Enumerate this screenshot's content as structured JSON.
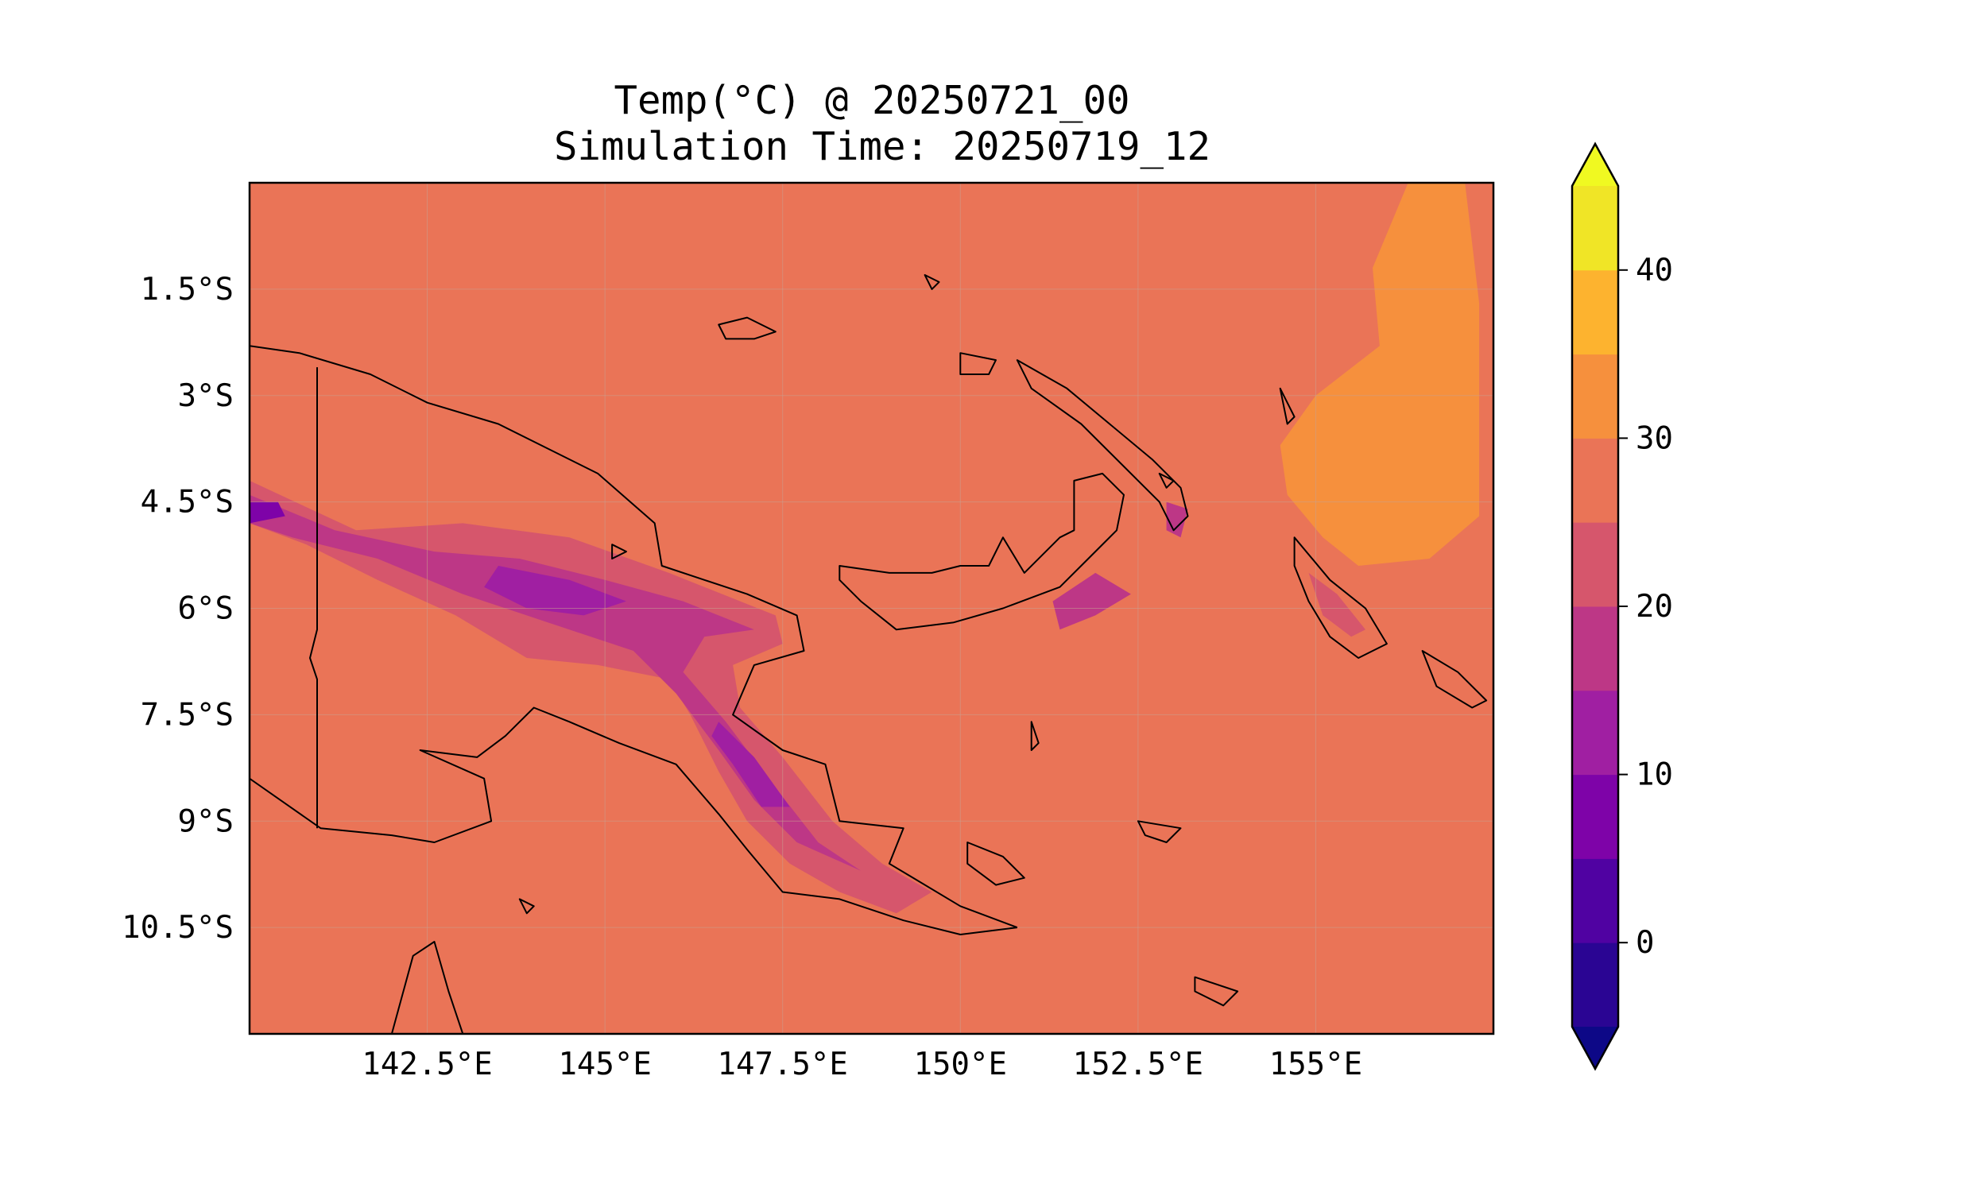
{
  "title": {
    "line1": "Temp(°C) @ 20250721_00",
    "line2": "Simulation Time: 20250719_12"
  },
  "axes": {
    "lon_range": [
      140.0,
      157.5
    ],
    "lat_range": [
      -12.0,
      0.0
    ],
    "lon_ticks": [
      {
        "value": 142.5,
        "label": "142.5°E"
      },
      {
        "value": 145.0,
        "label": "145°E"
      },
      {
        "value": 147.5,
        "label": "147.5°E"
      },
      {
        "value": 150.0,
        "label": "150°E"
      },
      {
        "value": 152.5,
        "label": "152.5°E"
      },
      {
        "value": 155.0,
        "label": "155°E"
      }
    ],
    "lat_ticks": [
      {
        "value": -1.5,
        "label": "1.5°S"
      },
      {
        "value": -3.0,
        "label": "3°S"
      },
      {
        "value": -4.5,
        "label": "4.5°S"
      },
      {
        "value": -6.0,
        "label": "6°S"
      },
      {
        "value": -7.5,
        "label": "7.5°S"
      },
      {
        "value": -9.0,
        "label": "9°S"
      },
      {
        "value": -10.5,
        "label": "10.5°S"
      }
    ],
    "grid": true
  },
  "colorbar": {
    "min": -5,
    "max": 45,
    "extend": "both",
    "levels": [
      {
        "from": -5,
        "to": 0,
        "color": "#2a0593"
      },
      {
        "from": 0,
        "to": 5,
        "color": "#5002a2"
      },
      {
        "from": 5,
        "to": 10,
        "color": "#7e03a8"
      },
      {
        "from": 10,
        "to": 15,
        "color": "#a01fa2"
      },
      {
        "from": 15,
        "to": 20,
        "color": "#bd3786"
      },
      {
        "from": 20,
        "to": 25,
        "color": "#d6566c"
      },
      {
        "from": 25,
        "to": 30,
        "color": "#ea7457"
      },
      {
        "from": 30,
        "to": 35,
        "color": "#f6903d"
      },
      {
        "from": 35,
        "to": 40,
        "color": "#fdb32f"
      },
      {
        "from": 40,
        "to": 45,
        "color": "#f0e526"
      }
    ],
    "under_color": "#0d0887",
    "over_color": "#f0f921",
    "ticks": [
      {
        "value": 0,
        "label": "0"
      },
      {
        "value": 10,
        "label": "10"
      },
      {
        "value": 20,
        "label": "20"
      },
      {
        "value": 30,
        "label": "30"
      },
      {
        "value": 40,
        "label": "40"
      }
    ]
  },
  "field": {
    "background_level_color": "#ea7457",
    "regions": [
      {
        "name": "east-warm-zone",
        "color": "#f6903d",
        "points": [
          [
            156.3,
            0
          ],
          [
            157.1,
            0
          ],
          [
            157.3,
            -1.7
          ],
          [
            157.3,
            -4.7
          ],
          [
            156.6,
            -5.3
          ],
          [
            155.6,
            -5.4
          ],
          [
            155.1,
            -5.0
          ],
          [
            154.6,
            -4.4
          ],
          [
            154.5,
            -3.7
          ],
          [
            155.0,
            -3.0
          ],
          [
            155.9,
            -2.3
          ],
          [
            155.8,
            -1.2
          ]
        ]
      },
      {
        "name": "highlands-20-25",
        "color": "#d6566c",
        "points": [
          [
            140,
            -4.2
          ],
          [
            141.5,
            -4.9
          ],
          [
            143.0,
            -4.8
          ],
          [
            144.5,
            -5.0
          ],
          [
            145.9,
            -5.5
          ],
          [
            147.4,
            -6.1
          ],
          [
            147.5,
            -6.5
          ],
          [
            146.8,
            -6.8
          ],
          [
            146.9,
            -7.4
          ],
          [
            147.5,
            -8.1
          ],
          [
            148.2,
            -9.0
          ],
          [
            148.9,
            -9.6
          ],
          [
            149.6,
            -10.0
          ],
          [
            149.1,
            -10.3
          ],
          [
            148.3,
            -10.0
          ],
          [
            147.6,
            -9.6
          ],
          [
            147.0,
            -9.0
          ],
          [
            146.6,
            -8.3
          ],
          [
            146.2,
            -7.5
          ],
          [
            145.9,
            -7.0
          ],
          [
            144.9,
            -6.8
          ],
          [
            143.9,
            -6.7
          ],
          [
            142.9,
            -6.1
          ],
          [
            141.8,
            -5.6
          ],
          [
            140.8,
            -5.1
          ],
          [
            140,
            -4.8
          ]
        ]
      },
      {
        "name": "highlands-15-20",
        "color": "#bd3786",
        "points": [
          [
            140,
            -4.4
          ],
          [
            141.2,
            -4.9
          ],
          [
            142.6,
            -5.2
          ],
          [
            143.8,
            -5.3
          ],
          [
            145.0,
            -5.6
          ],
          [
            146.1,
            -5.9
          ],
          [
            147.1,
            -6.3
          ],
          [
            146.4,
            -6.4
          ],
          [
            146.1,
            -6.9
          ],
          [
            146.7,
            -7.6
          ],
          [
            147.3,
            -8.4
          ],
          [
            148.0,
            -9.3
          ],
          [
            148.6,
            -9.7
          ],
          [
            147.7,
            -9.3
          ],
          [
            147.1,
            -8.7
          ],
          [
            146.6,
            -8.0
          ],
          [
            146.0,
            -7.2
          ],
          [
            145.4,
            -6.6
          ],
          [
            144.2,
            -6.2
          ],
          [
            143.0,
            -5.8
          ],
          [
            141.8,
            -5.3
          ],
          [
            140.6,
            -5.0
          ],
          [
            140,
            -4.8
          ]
        ]
      },
      {
        "name": "highlands-10-15",
        "color": "#a01fa2",
        "points": [
          [
            143.5,
            -5.4
          ],
          [
            144.5,
            -5.6
          ],
          [
            145.3,
            -5.9
          ],
          [
            144.7,
            -6.1
          ],
          [
            143.9,
            -6.0
          ],
          [
            143.3,
            -5.7
          ]
        ]
      },
      {
        "name": "highlands-10-15-b",
        "color": "#a01fa2",
        "points": [
          [
            146.6,
            -7.6
          ],
          [
            147.1,
            -8.1
          ],
          [
            147.6,
            -8.8
          ],
          [
            147.2,
            -8.8
          ],
          [
            146.8,
            -8.2
          ],
          [
            146.5,
            -7.8
          ]
        ]
      },
      {
        "name": "highlands-5-10",
        "color": "#7e03a8",
        "points": [
          [
            140,
            -4.5
          ],
          [
            140.4,
            -4.5
          ],
          [
            140.5,
            -4.7
          ],
          [
            140,
            -4.8
          ]
        ]
      },
      {
        "name": "new-britain-15-20",
        "color": "#bd3786",
        "points": [
          [
            151.3,
            -5.9
          ],
          [
            151.9,
            -5.5
          ],
          [
            152.4,
            -5.8
          ],
          [
            151.9,
            -6.1
          ],
          [
            151.4,
            -6.3
          ]
        ]
      },
      {
        "name": "new-ireland-15-20",
        "color": "#bd3786",
        "points": [
          [
            152.9,
            -4.5
          ],
          [
            153.2,
            -4.6
          ],
          [
            153.1,
            -5.0
          ],
          [
            152.9,
            -4.9
          ]
        ]
      },
      {
        "name": "bougainville-20-25",
        "color": "#d6566c",
        "points": [
          [
            154.9,
            -5.5
          ],
          [
            155.3,
            -5.8
          ],
          [
            155.7,
            -6.3
          ],
          [
            155.5,
            -6.4
          ],
          [
            155.1,
            -6.1
          ]
        ]
      }
    ]
  },
  "coastlines": [
    {
      "name": "new-guinea-north-coast",
      "closed": false,
      "points": [
        [
          140,
          -2.3
        ],
        [
          140.7,
          -2.4
        ],
        [
          141.7,
          -2.7
        ],
        [
          142.5,
          -3.1
        ],
        [
          143.5,
          -3.4
        ],
        [
          144.3,
          -3.8
        ],
        [
          144.9,
          -4.1
        ],
        [
          145.7,
          -4.8
        ],
        [
          145.8,
          -5.4
        ],
        [
          146.4,
          -5.6
        ],
        [
          147.0,
          -5.8
        ],
        [
          147.7,
          -6.1
        ],
        [
          147.8,
          -6.6
        ],
        [
          147.1,
          -6.8
        ],
        [
          146.8,
          -7.5
        ],
        [
          147.5,
          -8.0
        ],
        [
          148.1,
          -8.2
        ],
        [
          148.3,
          -9.0
        ],
        [
          149.2,
          -9.1
        ],
        [
          149.0,
          -9.6
        ],
        [
          150.0,
          -10.2
        ],
        [
          150.8,
          -10.5
        ]
      ]
    },
    {
      "name": "new-guinea-south-coast",
      "closed": false,
      "points": [
        [
          150.8,
          -10.5
        ],
        [
          150.0,
          -10.6
        ],
        [
          149.2,
          -10.4
        ],
        [
          148.3,
          -10.1
        ],
        [
          147.5,
          -10.0
        ],
        [
          147.0,
          -9.4
        ],
        [
          146.6,
          -8.9
        ],
        [
          146.0,
          -8.2
        ],
        [
          145.2,
          -7.9
        ],
        [
          144.5,
          -7.6
        ],
        [
          144.0,
          -7.4
        ],
        [
          143.6,
          -7.8
        ],
        [
          143.2,
          -8.1
        ],
        [
          142.4,
          -8.0
        ],
        [
          143.3,
          -8.4
        ],
        [
          143.4,
          -9.0
        ],
        [
          142.6,
          -9.3
        ],
        [
          142.0,
          -9.2
        ],
        [
          141.0,
          -9.1
        ],
        [
          140,
          -8.4
        ]
      ]
    },
    {
      "name": "png-indonesia-border",
      "closed": false,
      "points": [
        [
          140.95,
          -2.6
        ],
        [
          140.95,
          -6.3
        ],
        [
          140.85,
          -6.7
        ],
        [
          140.95,
          -7.0
        ],
        [
          140.95,
          -9.1
        ]
      ]
    },
    {
      "name": "new-britain",
      "closed": true,
      "points": [
        [
          148.3,
          -5.4
        ],
        [
          149.0,
          -5.5
        ],
        [
          149.6,
          -5.5
        ],
        [
          150.0,
          -5.4
        ],
        [
          150.4,
          -5.4
        ],
        [
          150.6,
          -5.0
        ],
        [
          150.9,
          -5.5
        ],
        [
          151.4,
          -5.0
        ],
        [
          151.6,
          -4.9
        ],
        [
          151.6,
          -4.2
        ],
        [
          152.0,
          -4.1
        ],
        [
          152.3,
          -4.4
        ],
        [
          152.2,
          -4.9
        ],
        [
          151.8,
          -5.3
        ],
        [
          151.4,
          -5.7
        ],
        [
          150.6,
          -6.0
        ],
        [
          149.9,
          -6.2
        ],
        [
          149.1,
          -6.3
        ],
        [
          148.6,
          -5.9
        ],
        [
          148.3,
          -5.6
        ]
      ]
    },
    {
      "name": "new-ireland",
      "closed": true,
      "points": [
        [
          150.8,
          -2.5
        ],
        [
          151.5,
          -2.9
        ],
        [
          152.1,
          -3.4
        ],
        [
          152.7,
          -3.9
        ],
        [
          153.1,
          -4.3
        ],
        [
          153.2,
          -4.7
        ],
        [
          153.0,
          -4.9
        ],
        [
          152.8,
          -4.5
        ],
        [
          152.3,
          -4.0
        ],
        [
          151.7,
          -3.4
        ],
        [
          151.0,
          -2.9
        ]
      ]
    },
    {
      "name": "manus",
      "closed": true,
      "points": [
        [
          146.6,
          -2.0
        ],
        [
          147.0,
          -1.9
        ],
        [
          147.4,
          -2.1
        ],
        [
          147.1,
          -2.2
        ],
        [
          146.7,
          -2.2
        ]
      ]
    },
    {
      "name": "new-hanover",
      "closed": true,
      "points": [
        [
          150.0,
          -2.4
        ],
        [
          150.5,
          -2.5
        ],
        [
          150.4,
          -2.7
        ],
        [
          150.0,
          -2.7
        ]
      ]
    },
    {
      "name": "bougainville",
      "closed": true,
      "points": [
        [
          154.7,
          -5.0
        ],
        [
          155.2,
          -5.6
        ],
        [
          155.7,
          -6.0
        ],
        [
          156.0,
          -6.5
        ],
        [
          155.6,
          -6.7
        ],
        [
          155.2,
          -6.4
        ],
        [
          154.9,
          -5.9
        ],
        [
          154.7,
          -5.4
        ]
      ]
    },
    {
      "name": "choiseul",
      "closed": true,
      "points": [
        [
          156.5,
          -6.6
        ],
        [
          157.0,
          -6.9
        ],
        [
          157.4,
          -7.3
        ],
        [
          157.2,
          -7.4
        ],
        [
          156.7,
          -7.1
        ]
      ]
    },
    {
      "name": "goodenough-fergusson",
      "closed": true,
      "points": [
        [
          150.1,
          -9.3
        ],
        [
          150.6,
          -9.5
        ],
        [
          150.9,
          -9.8
        ],
        [
          150.5,
          -9.9
        ],
        [
          150.1,
          -9.6
        ]
      ]
    },
    {
      "name": "woodlark",
      "closed": true,
      "points": [
        [
          152.5,
          -9.0
        ],
        [
          153.1,
          -9.1
        ],
        [
          152.9,
          -9.3
        ],
        [
          152.6,
          -9.2
        ]
      ]
    },
    {
      "name": "rossel-islands",
      "closed": true,
      "points": [
        [
          153.3,
          -11.2
        ],
        [
          153.9,
          -11.4
        ],
        [
          153.7,
          -11.6
        ],
        [
          153.3,
          -11.4
        ]
      ]
    },
    {
      "name": "cape-york",
      "closed": false,
      "points": [
        [
          142.0,
          -12.0
        ],
        [
          142.3,
          -10.9
        ],
        [
          142.6,
          -10.7
        ],
        [
          142.8,
          -11.4
        ],
        [
          143.0,
          -12.0
        ]
      ]
    },
    {
      "name": "islet-1",
      "closed": true,
      "points": [
        [
          149.5,
          -1.3
        ],
        [
          149.7,
          -1.4
        ],
        [
          149.6,
          -1.5
        ]
      ]
    },
    {
      "name": "islet-2",
      "closed": true,
      "points": [
        [
          152.8,
          -4.1
        ],
        [
          153.0,
          -4.2
        ],
        [
          152.9,
          -4.3
        ]
      ]
    },
    {
      "name": "islet-3",
      "closed": true,
      "points": [
        [
          154.5,
          -2.9
        ],
        [
          154.7,
          -3.3
        ],
        [
          154.6,
          -3.4
        ]
      ]
    },
    {
      "name": "islet-4",
      "closed": true,
      "points": [
        [
          151.0,
          -7.6
        ],
        [
          151.1,
          -7.9
        ],
        [
          151.0,
          -8.0
        ]
      ]
    },
    {
      "name": "islet-5",
      "closed": true,
      "points": [
        [
          145.1,
          -5.1
        ],
        [
          145.3,
          -5.2
        ],
        [
          145.1,
          -5.3
        ]
      ]
    },
    {
      "name": "islet-6",
      "closed": true,
      "points": [
        [
          143.8,
          -10.1
        ],
        [
          144.0,
          -10.2
        ],
        [
          143.9,
          -10.3
        ]
      ]
    }
  ]
}
